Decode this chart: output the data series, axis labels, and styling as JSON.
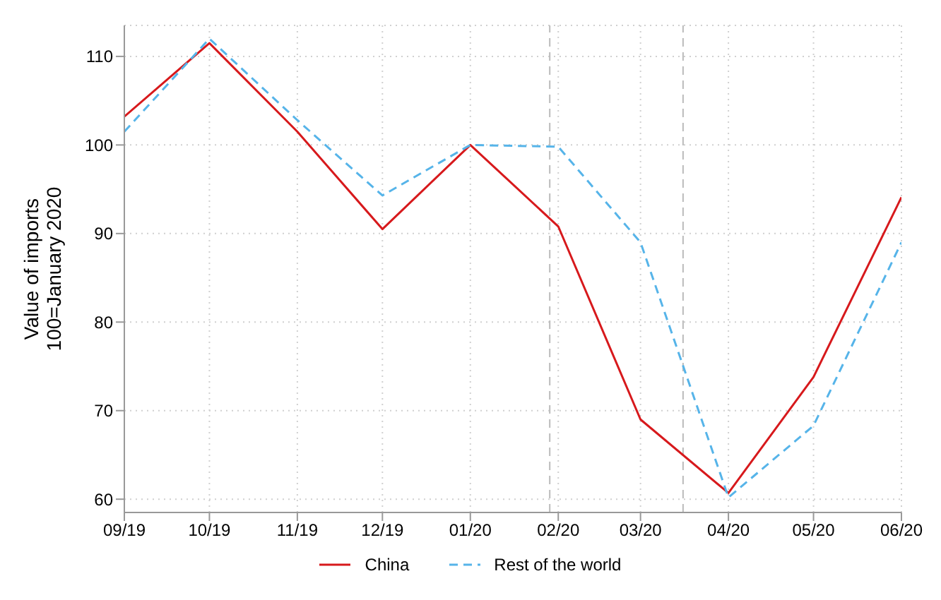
{
  "chart_data": {
    "type": "line",
    "ylabel": "Value of imports\n100=January 2020",
    "x": [
      "2019-09",
      "2019-10",
      "2019-11",
      "2019-12",
      "2020-01",
      "2020-02",
      "2020-03",
      "2020-04",
      "2020-05",
      "2020-06"
    ],
    "series": [
      {
        "name": "China",
        "color": "#d7191c",
        "line_style": "solid",
        "values": [
          103.2,
          111.5,
          101.5,
          90.5,
          100,
          90.8,
          69,
          60.7,
          73.8,
          94.1
        ]
      },
      {
        "name": "Rest of the world",
        "color": "#56b4e9",
        "line_style": "dashed",
        "values": [
          101.5,
          112,
          102.8,
          94.3,
          100,
          99.8,
          89,
          60.2,
          68.3,
          89
        ]
      }
    ],
    "xlim": [
      "2019-09",
      "2020-06"
    ],
    "xticks": [
      {
        "value": "2019-09",
        "label": "09/19"
      },
      {
        "value": "2019-10",
        "label": "10/19"
      },
      {
        "value": "2019-11",
        "label": "11/19"
      },
      {
        "value": "2019-12",
        "label": "12/19"
      },
      {
        "value": "2020-01",
        "label": "01/20"
      },
      {
        "value": "2020-02",
        "label": "02/20"
      },
      {
        "value": "2020-03",
        "label": "03/20"
      },
      {
        "value": "2020-04",
        "label": "04/20"
      },
      {
        "value": "2020-05",
        "label": "05/20"
      },
      {
        "value": "2020-06",
        "label": "06/20"
      }
    ],
    "ylim": [
      58.5,
      113.5
    ],
    "yticks": [
      60,
      70,
      80,
      90,
      100,
      110
    ],
    "ref_lines": [
      {
        "axis": "x",
        "value": "2020-01-29",
        "color": "#bbbbbb",
        "line_style": "dashed"
      },
      {
        "axis": "x",
        "value": "2020-03-16",
        "color": "#bbbbbb",
        "line_style": "dashed"
      }
    ],
    "grid": true,
    "legend": "bottom",
    "marker": "none"
  }
}
